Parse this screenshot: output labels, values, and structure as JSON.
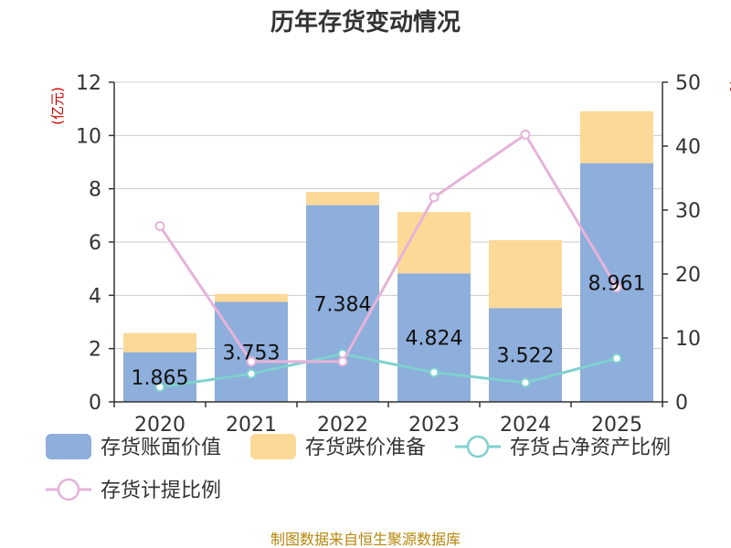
{
  "chart_data": {
    "type": "bar",
    "title": "历年存货变动情况",
    "categories": [
      "2020",
      "2021",
      "2022",
      "2023",
      "2024",
      "2025"
    ],
    "y_left": {
      "label": "(亿元)",
      "ylim": [
        0,
        12
      ],
      "ticks": [
        0,
        2,
        4,
        6,
        8,
        10,
        12
      ]
    },
    "y_right": {
      "label": "%",
      "ylim": [
        0,
        50
      ],
      "ticks": [
        0,
        10,
        20,
        30,
        40,
        50
      ]
    },
    "stacked": true,
    "grid": true,
    "legend_position": "bottom",
    "series": [
      {
        "name": "存货账面价值",
        "type": "bar",
        "axis": "left",
        "color": "#8eaedb",
        "values": [
          1.865,
          3.753,
          7.384,
          4.824,
          3.522,
          8.961
        ],
        "labels": [
          "1.865",
          "3.753",
          "7.384",
          "4.824",
          "3.522",
          "8.961"
        ]
      },
      {
        "name": "存货跌价准备",
        "type": "bar",
        "axis": "left",
        "color": "#fdd998",
        "values": [
          0.72,
          0.3,
          0.5,
          2.3,
          2.55,
          1.95
        ]
      },
      {
        "name": "存货占净资产比例",
        "type": "line",
        "axis": "right",
        "color": "#7fd1cf",
        "values": [
          2.3,
          4.4,
          7.5,
          4.6,
          3.0,
          6.8
        ]
      },
      {
        "name": "存货计提比例",
        "type": "line",
        "axis": "right",
        "color": "#e6b3d9",
        "values": [
          27.5,
          6.3,
          6.3,
          32.0,
          41.8,
          17.9
        ]
      }
    ]
  },
  "footer": {
    "source": "制图数据来自恒生聚源数据库"
  }
}
